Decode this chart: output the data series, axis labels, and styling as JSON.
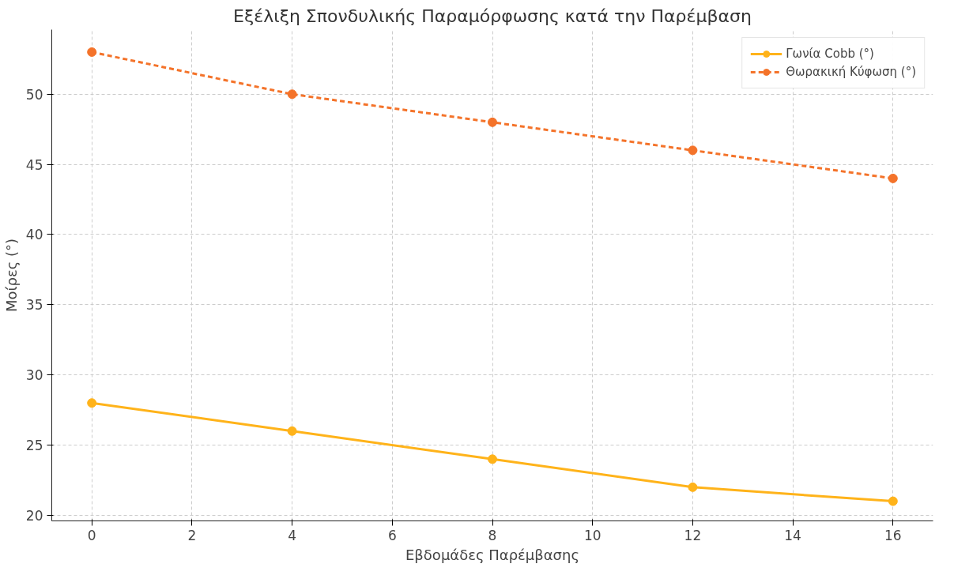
{
  "chart_data": {
    "type": "line",
    "title": "Εξέλιξη Σπονδυλικής Παραμόρφωσης κατά την Παρέμβαση",
    "xlabel": "Εβδομάδες Παρέμβασης",
    "ylabel": "Μοίρες (°)",
    "x": [
      0,
      4,
      8,
      12,
      16
    ],
    "series": [
      {
        "name": "Γωνία Cobb (°)",
        "color": "#ffb31a",
        "values": [
          28,
          26,
          24,
          22,
          21
        ],
        "line_style": "solid"
      },
      {
        "name": "Θωρακική Κύφωση (°)",
        "color": "#f4732a",
        "values": [
          53,
          50,
          48,
          46,
          44
        ],
        "line_style": "dashed"
      }
    ],
    "xlim": [
      -0.8,
      16.8
    ],
    "ylim": [
      19.6,
      54.6
    ],
    "xticks": [
      0,
      2,
      4,
      6,
      8,
      10,
      12,
      14,
      16
    ],
    "yticks": [
      20,
      25,
      30,
      35,
      40,
      45,
      50
    ],
    "grid": true,
    "legend": "top right",
    "marker": "circle"
  }
}
